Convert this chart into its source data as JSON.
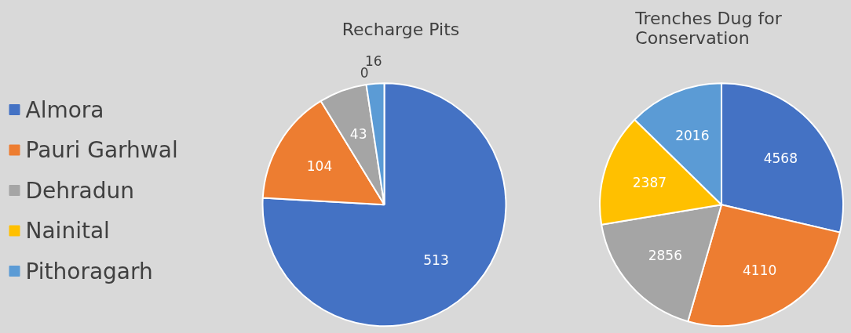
{
  "chart_data": [
    {
      "type": "pie",
      "title": "Recharge Pits",
      "categories": [
        "Almora",
        "Pauri Garhwal",
        "Dehradun",
        "Nainital",
        "Pithoragarh"
      ],
      "values": [
        513,
        104,
        43,
        0,
        16
      ],
      "value_labels": [
        "513",
        "104",
        "43",
        "0",
        "16"
      ],
      "colors": [
        "#4472c4",
        "#ed7d31",
        "#a5a5a5",
        "#ffc000",
        "#5b9bd5"
      ],
      "legend": "left"
    },
    {
      "type": "pie",
      "title": "Trenches Dug for Conservation",
      "values": [
        4568,
        4110,
        2856,
        2387,
        2016
      ],
      "colors": [
        "#4472c4",
        "#ed7d31",
        "#a5a5a5",
        "#ffc000",
        "#5b9bd5"
      ],
      "data_labels": true
    }
  ]
}
